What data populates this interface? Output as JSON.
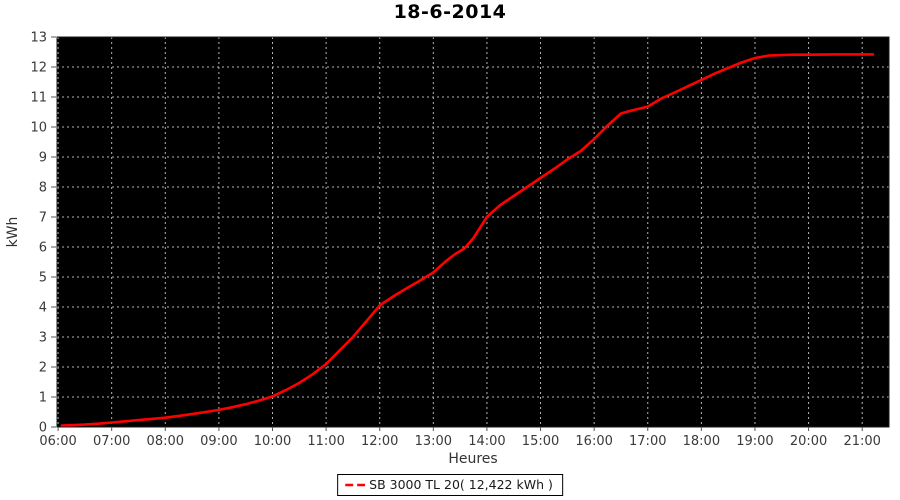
{
  "chart_data": {
    "type": "line",
    "title": "18-6-2014",
    "xlabel": "Heures",
    "ylabel": "kWh",
    "xlim": [
      5.98,
      21.5
    ],
    "ylim": [
      0,
      13
    ],
    "grid": "dashed-gray-on-black",
    "legend_position": "bottom-center",
    "legend_label": "SB 3000 TL 20( 12,422 kWh )",
    "total_kwh_shown": "12,422 kWh",
    "colors": {
      "line": "#ff0000",
      "plot_background": "#000000",
      "gridline": "#b5b5b5",
      "tick_text": "#3a3a3a",
      "frame": "#1a1a1a"
    },
    "x_ticks": [
      {
        "hour": 6,
        "label": "06:00"
      },
      {
        "hour": 7,
        "label": "07:00"
      },
      {
        "hour": 8,
        "label": "08:00"
      },
      {
        "hour": 9,
        "label": "09:00"
      },
      {
        "hour": 10,
        "label": "10:00"
      },
      {
        "hour": 11,
        "label": "11:00"
      },
      {
        "hour": 12,
        "label": "12:00"
      },
      {
        "hour": 13,
        "label": "13:00"
      },
      {
        "hour": 14,
        "label": "14:00"
      },
      {
        "hour": 15,
        "label": "15:00"
      },
      {
        "hour": 16,
        "label": "16:00"
      },
      {
        "hour": 17,
        "label": "17:00"
      },
      {
        "hour": 18,
        "label": "18:00"
      },
      {
        "hour": 19,
        "label": "19:00"
      },
      {
        "hour": 20,
        "label": "20:00"
      },
      {
        "hour": 21,
        "label": "21:00"
      }
    ],
    "y_ticks": [
      {
        "value": 0,
        "label": "0"
      },
      {
        "value": 1,
        "label": "1"
      },
      {
        "value": 2,
        "label": "2"
      },
      {
        "value": 3,
        "label": "3"
      },
      {
        "value": 4,
        "label": "4"
      },
      {
        "value": 5,
        "label": "5"
      },
      {
        "value": 6,
        "label": "6"
      },
      {
        "value": 7,
        "label": "7"
      },
      {
        "value": 8,
        "label": "8"
      },
      {
        "value": 9,
        "label": "9"
      },
      {
        "value": 10,
        "label": "10"
      },
      {
        "value": 11,
        "label": "11"
      },
      {
        "value": 12,
        "label": "12"
      },
      {
        "value": 13,
        "label": "13"
      }
    ],
    "series": [
      {
        "name": "SB 3000 TL 20",
        "color": "#ff0000",
        "points": [
          [
            6.07,
            0.05
          ],
          [
            6.25,
            0.06
          ],
          [
            6.5,
            0.08
          ],
          [
            6.75,
            0.11
          ],
          [
            7.0,
            0.15
          ],
          [
            7.25,
            0.19
          ],
          [
            7.5,
            0.23
          ],
          [
            7.75,
            0.27
          ],
          [
            8.0,
            0.31
          ],
          [
            8.25,
            0.37
          ],
          [
            8.5,
            0.43
          ],
          [
            8.75,
            0.5
          ],
          [
            9.0,
            0.57
          ],
          [
            9.25,
            0.66
          ],
          [
            9.5,
            0.76
          ],
          [
            9.75,
            0.88
          ],
          [
            10.0,
            1.02
          ],
          [
            10.25,
            1.23
          ],
          [
            10.5,
            1.47
          ],
          [
            10.75,
            1.76
          ],
          [
            11.0,
            2.1
          ],
          [
            11.25,
            2.55
          ],
          [
            11.5,
            3.0
          ],
          [
            11.75,
            3.52
          ],
          [
            12.0,
            4.05
          ],
          [
            12.25,
            4.35
          ],
          [
            12.5,
            4.62
          ],
          [
            12.75,
            4.88
          ],
          [
            13.0,
            5.15
          ],
          [
            13.25,
            5.55
          ],
          [
            13.42,
            5.78
          ],
          [
            13.58,
            5.95
          ],
          [
            13.75,
            6.3
          ],
          [
            14.0,
            7.0
          ],
          [
            14.25,
            7.4
          ],
          [
            14.5,
            7.7
          ],
          [
            14.75,
            8.0
          ],
          [
            15.0,
            8.3
          ],
          [
            15.25,
            8.6
          ],
          [
            15.5,
            8.92
          ],
          [
            15.75,
            9.2
          ],
          [
            16.0,
            9.6
          ],
          [
            16.25,
            10.05
          ],
          [
            16.5,
            10.45
          ],
          [
            16.7,
            10.55
          ],
          [
            17.0,
            10.68
          ],
          [
            17.25,
            10.95
          ],
          [
            17.5,
            11.15
          ],
          [
            17.75,
            11.36
          ],
          [
            18.0,
            11.57
          ],
          [
            18.25,
            11.78
          ],
          [
            18.5,
            11.97
          ],
          [
            18.75,
            12.15
          ],
          [
            19.0,
            12.3
          ],
          [
            19.25,
            12.38
          ],
          [
            19.5,
            12.4
          ],
          [
            19.75,
            12.41
          ],
          [
            20.0,
            12.41
          ],
          [
            20.5,
            12.42
          ],
          [
            21.0,
            12.42
          ],
          [
            21.2,
            12.42
          ]
        ]
      }
    ]
  }
}
